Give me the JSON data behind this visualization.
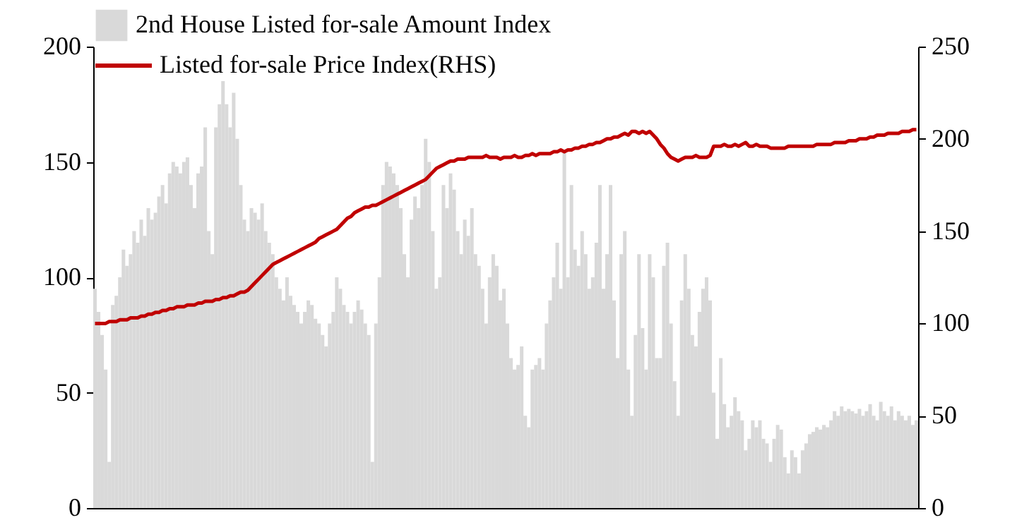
{
  "chart_data": {
    "type": "bar",
    "categories": [
      null,
      null,
      null,
      null,
      null,
      null,
      null,
      null,
      null,
      null,
      null,
      null,
      null,
      null,
      null,
      null,
      null,
      null,
      null,
      null,
      null,
      null,
      null,
      null,
      null,
      null,
      null,
      null,
      null,
      null,
      null,
      null,
      null,
      null,
      null,
      null,
      null,
      null,
      null,
      null,
      null,
      null,
      null,
      null,
      null,
      null,
      null,
      null,
      null,
      null,
      null,
      null,
      null,
      null,
      null,
      null,
      null,
      null,
      null,
      null,
      null,
      null,
      null,
      null,
      null,
      null,
      null,
      null,
      null,
      null,
      null,
      null,
      null,
      null,
      null,
      null,
      null,
      null,
      null,
      null,
      null,
      null,
      null,
      null,
      null,
      null,
      null,
      null,
      null,
      null,
      null,
      null,
      null,
      null,
      null,
      null,
      null,
      null,
      null,
      null,
      null,
      null,
      null,
      null,
      null,
      null,
      null,
      null,
      null,
      null,
      null,
      null,
      null,
      null,
      null,
      null,
      null,
      null,
      null,
      null,
      null,
      null,
      null,
      null,
      null,
      null,
      null,
      null,
      null,
      null,
      null,
      null,
      null,
      null,
      null,
      null,
      null,
      null,
      null,
      null,
      null,
      null,
      null,
      null,
      null,
      null,
      null,
      null,
      null,
      null,
      null,
      null,
      null,
      null,
      null,
      null,
      null,
      null,
      null,
      null,
      null,
      null,
      null,
      null,
      null,
      null,
      null,
      null,
      null,
      null,
      null,
      null,
      null,
      null,
      null,
      null,
      null,
      null,
      null,
      null,
      null,
      null,
      null,
      null,
      null,
      null,
      null,
      null,
      null,
      null,
      null,
      null,
      null,
      null,
      null,
      null,
      null,
      null,
      null,
      null,
      null,
      null,
      null,
      null,
      null,
      null,
      null,
      null,
      null,
      null,
      null,
      null,
      null,
      null,
      null,
      null,
      null,
      null,
      null,
      null,
      null,
      null,
      null,
      null,
      null,
      null,
      null,
      null,
      null,
      null,
      null,
      null
    ],
    "series": [
      {
        "name": "2nd House Listed for-sale Amount Index",
        "color": "#d9d9d9",
        "values": [
          95,
          85,
          75,
          60,
          20,
          88,
          92,
          100,
          112,
          105,
          110,
          120,
          115,
          125,
          118,
          130,
          125,
          128,
          135,
          140,
          132,
          145,
          150,
          148,
          145,
          150,
          152,
          140,
          130,
          145,
          148,
          165,
          120,
          110,
          165,
          175,
          185,
          175,
          165,
          180,
          160,
          140,
          125,
          120,
          130,
          128,
          125,
          132,
          120,
          115,
          110,
          100,
          95,
          90,
          100,
          92,
          88,
          85,
          80,
          85,
          90,
          88,
          82,
          80,
          75,
          70,
          80,
          85,
          100,
          95,
          88,
          85,
          80,
          85,
          90,
          86,
          80,
          75,
          20,
          80,
          100,
          140,
          150,
          148,
          145,
          140,
          130,
          110,
          100,
          125,
          135,
          130,
          140,
          160,
          150,
          120,
          95,
          100,
          140,
          130,
          145,
          138,
          120,
          110,
          125,
          118,
          130,
          110,
          105,
          95,
          80,
          100,
          110,
          105,
          90,
          95,
          80,
          65,
          60,
          62,
          70,
          40,
          35,
          60,
          62,
          65,
          60,
          80,
          90,
          100,
          115,
          95,
          155,
          100,
          140,
          112,
          105,
          120,
          110,
          95,
          100,
          115,
          140,
          95,
          110,
          140,
          90,
          65,
          110,
          120,
          60,
          40,
          75,
          110,
          78,
          60,
          110,
          100,
          65,
          65,
          105,
          115,
          80,
          55,
          40,
          90,
          110,
          95,
          75,
          70,
          85,
          95,
          100,
          90,
          50,
          30,
          65,
          45,
          35,
          40,
          48,
          42,
          38,
          25,
          30,
          38,
          35,
          38,
          30,
          28,
          20,
          30,
          36,
          34,
          22,
          15,
          25,
          22,
          15,
          25,
          28,
          32,
          33,
          35,
          34,
          36,
          35,
          38,
          42,
          40,
          44,
          42,
          43,
          42,
          41,
          43,
          40,
          42,
          45,
          40,
          38,
          46,
          42,
          40,
          44,
          38,
          42,
          40,
          38,
          40,
          36,
          38
        ]
      },
      {
        "name": "Listed for-sale Price Index(RHS)",
        "type": "line",
        "axis": "y2",
        "color": "#c00000",
        "values": [
          100,
          100,
          100,
          100,
          101,
          101,
          101,
          102,
          102,
          102,
          103,
          103,
          103,
          104,
          104,
          105,
          105,
          106,
          106,
          107,
          107,
          108,
          108,
          109,
          109,
          109,
          110,
          110,
          110,
          111,
          111,
          112,
          112,
          112,
          113,
          113,
          114,
          114,
          115,
          115,
          116,
          117,
          117,
          118,
          120,
          122,
          124,
          126,
          128,
          130,
          132,
          133,
          134,
          135,
          136,
          137,
          138,
          139,
          140,
          141,
          142,
          143,
          144,
          146,
          147,
          148,
          149,
          150,
          151,
          153,
          155,
          157,
          158,
          160,
          161,
          162,
          163,
          163,
          164,
          164,
          165,
          166,
          167,
          168,
          169,
          170,
          171,
          172,
          173,
          174,
          175,
          176,
          177,
          178,
          180,
          182,
          184,
          185,
          186,
          187,
          188,
          188,
          189,
          189,
          189,
          190,
          190,
          190,
          190,
          190,
          191,
          190,
          190,
          190,
          189,
          190,
          190,
          190,
          191,
          190,
          190,
          191,
          191,
          192,
          191,
          192,
          192,
          192,
          192,
          193,
          193,
          194,
          193,
          194,
          194,
          195,
          195,
          196,
          196,
          197,
          197,
          198,
          198,
          199,
          200,
          200,
          201,
          201,
          202,
          203,
          202,
          204,
          204,
          203,
          204,
          203,
          204,
          202,
          200,
          197,
          195,
          192,
          190,
          189,
          188,
          189,
          190,
          190,
          190,
          191,
          190,
          190,
          190,
          191,
          196,
          196,
          196,
          197,
          196,
          196,
          197,
          196,
          197,
          198,
          196,
          196,
          197,
          196,
          196,
          196,
          195,
          195,
          195,
          195,
          195,
          196,
          196,
          196,
          196,
          196,
          196,
          196,
          196,
          197,
          197,
          197,
          197,
          197,
          198,
          198,
          198,
          198,
          199,
          199,
          199,
          200,
          200,
          200,
          201,
          201,
          202,
          202,
          202,
          203,
          203,
          203,
          203,
          204,
          204,
          204,
          205,
          205
        ]
      }
    ],
    "ylim": [
      0,
      200
    ],
    "yticks": [
      0,
      50,
      100,
      150,
      200
    ],
    "y2lim": [
      0,
      250
    ],
    "y2ticks": [
      0,
      50,
      100,
      150,
      200,
      250
    ],
    "legend": "top left",
    "tick_labels": "y"
  }
}
